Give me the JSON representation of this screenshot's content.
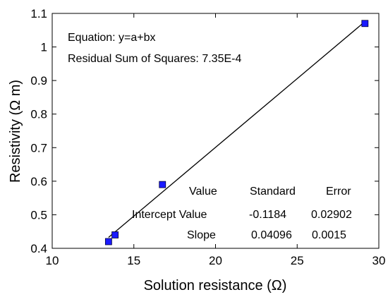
{
  "chart_data": {
    "type": "scatter",
    "xlabel": "Solution resistance (Ω)",
    "ylabel": "Resistivity (Ω m)",
    "xlim": [
      10,
      30
    ],
    "ylim": [
      0.4,
      1.1
    ],
    "xticks": [
      "10",
      "15",
      "20",
      "25",
      "30"
    ],
    "yticks": [
      "0.4",
      "0.5",
      "0.6",
      "0.7",
      "0.8",
      "0.9",
      "1",
      "1.1"
    ],
    "grid": false,
    "points": [
      {
        "x": 13.45,
        "y": 0.42
      },
      {
        "x": 13.85,
        "y": 0.44
      },
      {
        "x": 16.75,
        "y": 0.59
      },
      {
        "x": 29.15,
        "y": 1.07
      }
    ],
    "fit_line": {
      "intercept": -0.1184,
      "slope": 0.04096,
      "x_range": [
        13.45,
        29.15
      ]
    },
    "marker_color": "#1a1aff",
    "annotations": {
      "equation": "Equation: y=a+bx",
      "residual": "Residual Sum of Squares: 7.35E-4"
    },
    "fit_table": {
      "header": [
        "Value",
        "Standard",
        "Error"
      ],
      "rows": [
        {
          "label": "Intercept Value",
          "value": "-0.1184",
          "error": "0.02902"
        },
        {
          "label": "Slope",
          "value": "0.04096",
          "error": "0.0015"
        }
      ]
    }
  }
}
